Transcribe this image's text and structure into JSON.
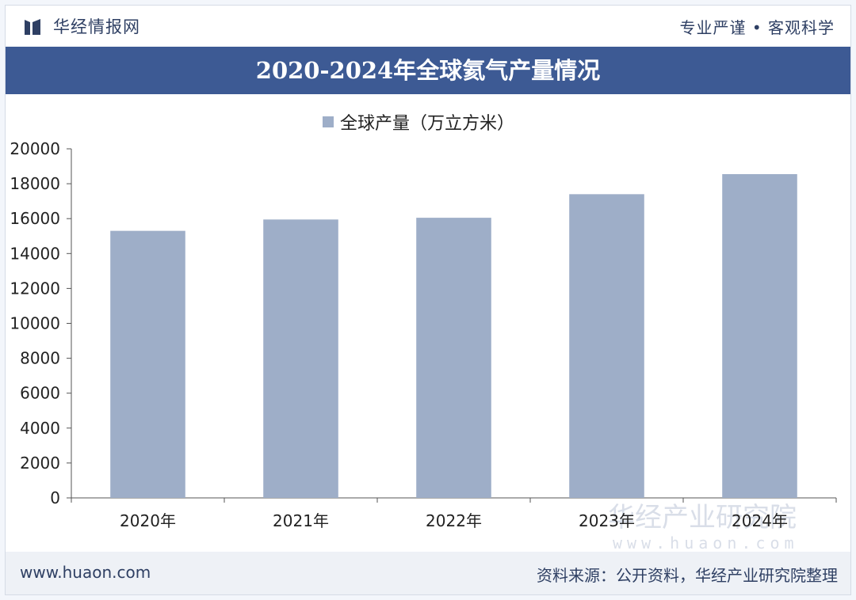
{
  "header": {
    "brand": "华经情报网",
    "slogan": "专业严谨 • 客观科学"
  },
  "chart_data": {
    "type": "bar",
    "title": "2020-2024年全球氦气产量情况",
    "categories": [
      "2020年",
      "2021年",
      "2022年",
      "2023年",
      "2024年"
    ],
    "series": [
      {
        "name": "全球产量（万立方米）",
        "values": [
          15300,
          15950,
          16050,
          17400,
          18550
        ]
      }
    ],
    "ylim": [
      0,
      20000
    ],
    "yticks": [
      0,
      2000,
      4000,
      6000,
      8000,
      10000,
      12000,
      14000,
      16000,
      18000,
      20000
    ],
    "legend_position": "top-center",
    "grid": false
  },
  "watermark": {
    "name": "华经产业研究院",
    "url": "www.huaon.com"
  },
  "footer": {
    "url": "www.huaon.com",
    "source": "资料来源：公开资料，华经产业研究院整理"
  },
  "colors": {
    "bar": "#9eaec8",
    "title_bar": "#3d5a94",
    "brand_text": "#2e3f63"
  }
}
